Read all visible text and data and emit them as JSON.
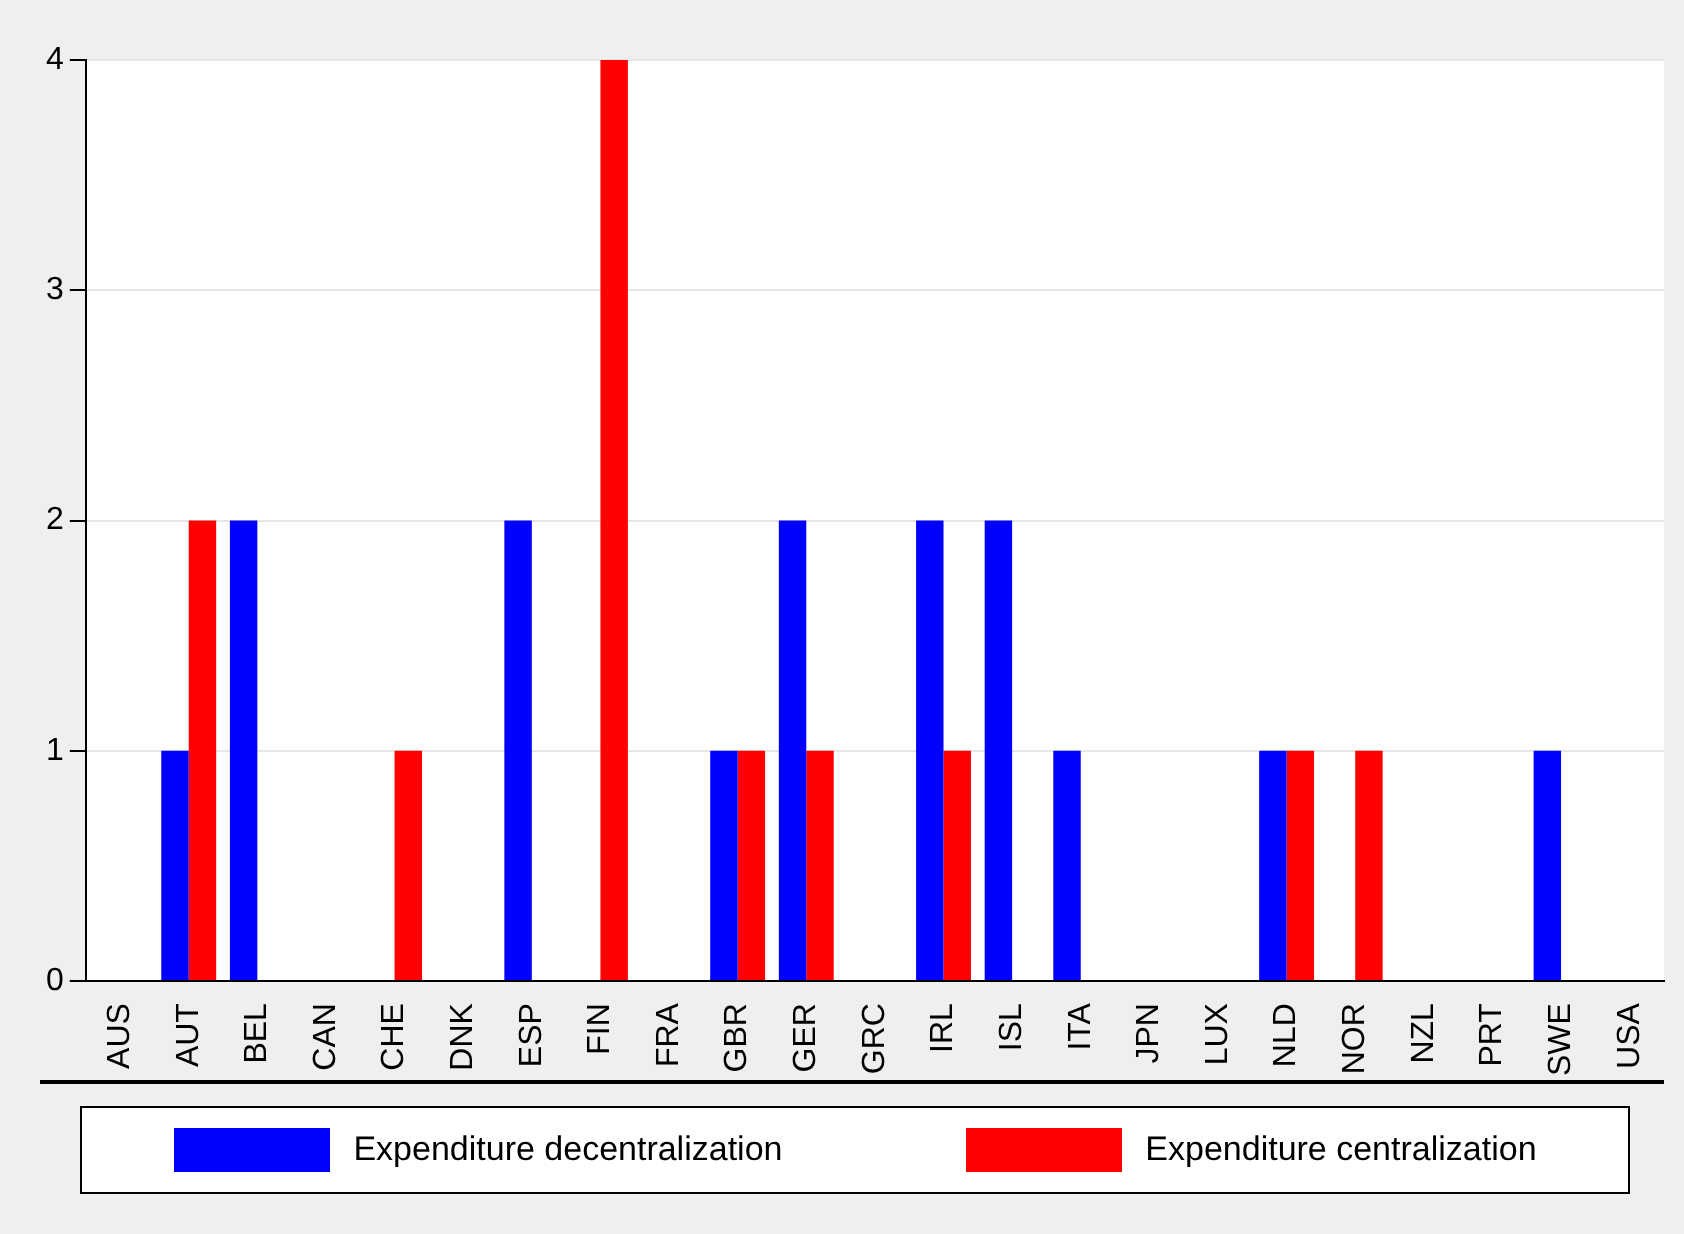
{
  "chart_data": {
    "type": "bar",
    "categories": [
      "AUS",
      "AUT",
      "BEL",
      "CAN",
      "CHE",
      "DNK",
      "ESP",
      "FIN",
      "FRA",
      "GBR",
      "GER",
      "GRC",
      "IRL",
      "ISL",
      "ITA",
      "JPN",
      "LUX",
      "NLD",
      "NOR",
      "NZL",
      "PRT",
      "SWE",
      "USA"
    ],
    "series": [
      {
        "name": "Expenditure decentralization",
        "color": "#0000ff",
        "values": [
          0,
          1,
          2,
          0,
          0,
          0,
          2,
          0,
          0,
          1,
          2,
          0,
          2,
          2,
          1,
          0,
          0,
          1,
          0,
          0,
          0,
          1,
          0
        ]
      },
      {
        "name": "Expenditure centralization",
        "color": "#ff0000",
        "values": [
          0,
          2,
          0,
          0,
          1,
          0,
          0,
          4,
          0,
          1,
          1,
          0,
          1,
          0,
          0,
          0,
          0,
          1,
          1,
          0,
          0,
          0,
          0
        ]
      }
    ],
    "ylim": [
      0,
      4
    ],
    "yticks": [
      0,
      1,
      2,
      3,
      4
    ],
    "grid": "y",
    "legend": "bottom"
  }
}
